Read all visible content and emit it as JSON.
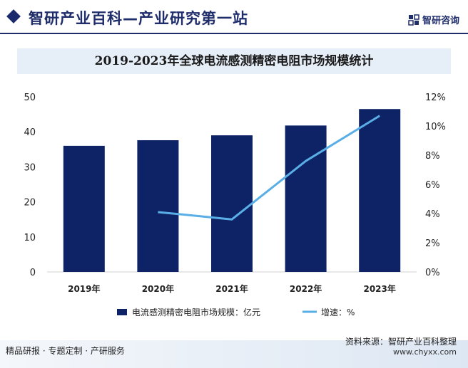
{
  "header": {
    "title": "智研产业百科—产业研究第一站",
    "brand": "智研咨询"
  },
  "chart_data": {
    "type": "bar",
    "title": "2019-2023年全球电流感测精密电阻市场规模统计",
    "categories": [
      "2019年",
      "2020年",
      "2021年",
      "2022年",
      "2023年"
    ],
    "series": [
      {
        "name": "电流感测精密电阻市场规模：亿元",
        "kind": "bar",
        "axis": "left",
        "values": [
          36,
          37.6,
          39,
          41.8,
          46.5
        ]
      },
      {
        "name": "增速：%",
        "kind": "line",
        "axis": "right",
        "values": [
          null,
          4.1,
          3.6,
          7.6,
          10.7
        ]
      }
    ],
    "left_axis": {
      "min": 0,
      "max": 50,
      "ticks": [
        "0",
        "10",
        "20",
        "30",
        "40",
        "50"
      ]
    },
    "right_axis": {
      "min": 0,
      "max": 12,
      "ticks": [
        "0%",
        "2%",
        "4%",
        "6%",
        "8%",
        "10%",
        "12%"
      ]
    },
    "grid": false,
    "legend_position": "bottom",
    "colors": {
      "bar": "#0d2366",
      "line": "#5aaee6"
    }
  },
  "footer": {
    "left": "精品研报 · 专题定制 · 产研服务",
    "source": "资料来源：智研产业百科整理",
    "url": "www.chyxx.com"
  }
}
